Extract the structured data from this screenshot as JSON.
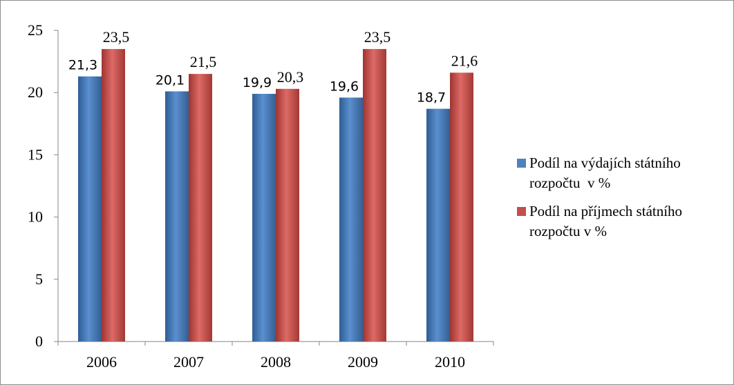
{
  "chart_data": {
    "type": "bar",
    "categories": [
      "2006",
      "2007",
      "2008",
      "2009",
      "2010"
    ],
    "series": [
      {
        "name": "Podíl na výdajích státního rozpočtu  v %",
        "values": [
          21.3,
          20.1,
          19.9,
          19.6,
          18.7
        ],
        "labels": [
          "21,3",
          "20,1",
          "19,9",
          "19,6",
          "18,7"
        ],
        "color": "#4f81bd"
      },
      {
        "name": "Podíl na příjmech státního rozpočtu v %",
        "values": [
          23.5,
          21.5,
          20.3,
          23.5,
          21.6
        ],
        "labels": [
          "23,5",
          "21,5",
          "20,3",
          "23,5",
          "21,6"
        ],
        "color": "#c0504d"
      }
    ],
    "yticks": [
      "0",
      "5",
      "10",
      "15",
      "20",
      "25"
    ],
    "ylim": [
      0,
      25
    ],
    "grid": false,
    "legend_position": "right"
  }
}
